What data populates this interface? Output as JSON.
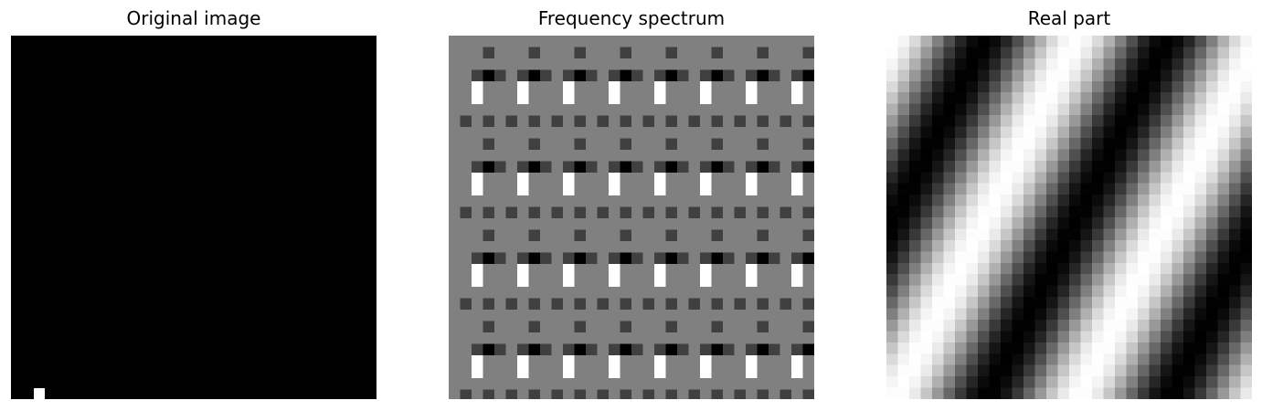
{
  "panels": [
    {
      "title": "Original image"
    },
    {
      "title": "Frequency spectrum"
    },
    {
      "title": "Real part"
    }
  ],
  "colors": {
    "black": "#000000",
    "white": "#ffffff",
    "mid_gray": "#808080",
    "dark_gray": "#404040"
  }
}
